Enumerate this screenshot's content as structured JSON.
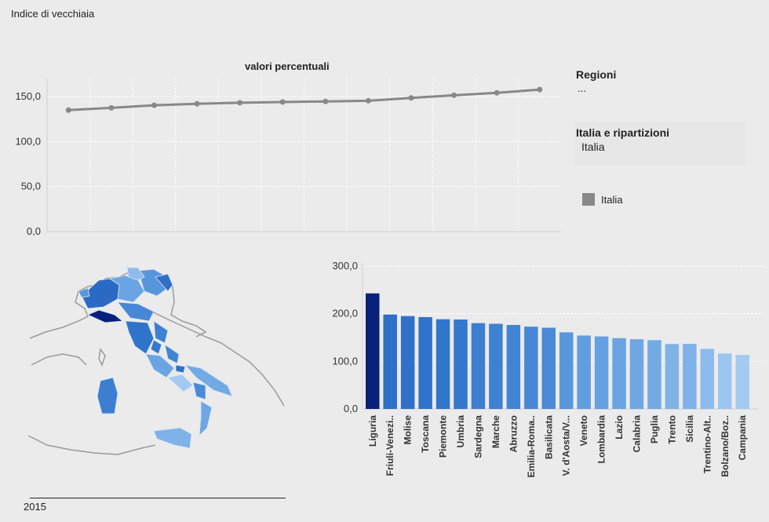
{
  "page": {
    "title": "Indice di vecchiaia"
  },
  "line_panel": {
    "title": "valori percentuali"
  },
  "side_panel": {
    "regioni_label": "Regioni",
    "regioni_value": "...",
    "ripartizioni_label": "Italia e ripartizioni",
    "ripartizioni_value": "Italia",
    "legend_label": "Italia",
    "legend_color": "#888888"
  },
  "map_panel": {
    "year": "2015",
    "highlight_color": "#08217a",
    "base_color": "#4f8fd8"
  },
  "chart_data": [
    {
      "type": "line",
      "title": "valori percentuali",
      "x": [
        1,
        2,
        3,
        4,
        5,
        6,
        7,
        8,
        9,
        10,
        11,
        12
      ],
      "series": [
        {
          "name": "Italia",
          "color": "#888888",
          "values": [
            134.9,
            137.4,
            140.3,
            141.9,
            143.1,
            143.9,
            144.5,
            145.3,
            148.4,
            151.4,
            154.1,
            157.7
          ]
        }
      ],
      "ylim": [
        0,
        170
      ],
      "yticks": [
        0,
        50,
        100,
        150
      ],
      "ytick_labels": [
        "0,0",
        "50,0",
        "100,0",
        "150,0"
      ],
      "grid": true
    },
    {
      "type": "bar",
      "categories": [
        "Liguria",
        "Friuli-Venezi..",
        "Molise",
        "Toscana",
        "Piemonte",
        "Umbria",
        "Sardegna",
        "Marche",
        "Abruzzo",
        "Emilia-Roma..",
        "Basilicata",
        "V. d'Aosta/V...",
        "Veneto",
        "Lombardia",
        "Lazio",
        "Calabria",
        "Puglia",
        "Trento",
        "Sicilia",
        "Trentino-Alt..",
        "Bolzano/Boz..",
        "Campania"
      ],
      "values": [
        242.7,
        198.3,
        195.1,
        192.9,
        188.4,
        187.8,
        180.2,
        178.9,
        176.4,
        172.8,
        170.6,
        160.9,
        154.2,
        152.3,
        148.7,
        146.4,
        144.5,
        136.4,
        136.7,
        126.1,
        116.6,
        113.4
      ],
      "colors": [
        "#08217a",
        "#2e6fc7",
        "#2f71c9",
        "#3073ca",
        "#3276cc",
        "#3477cd",
        "#3c7fd1",
        "#3e80d2",
        "#4284d4",
        "#4787d6",
        "#4a8ad7",
        "#5896dc",
        "#629ddf",
        "#65a0e0",
        "#6aa4e2",
        "#6ea7e3",
        "#72aae4",
        "#7fb3e8",
        "#7eb2e8",
        "#8dbcec",
        "#9cc6ef",
        "#a3caf1"
      ],
      "ylim": [
        0,
        300
      ],
      "yticks": [
        0,
        100,
        200,
        300
      ],
      "ytick_labels": [
        "0,0",
        "100,0",
        "200,0",
        "300,0"
      ]
    }
  ]
}
